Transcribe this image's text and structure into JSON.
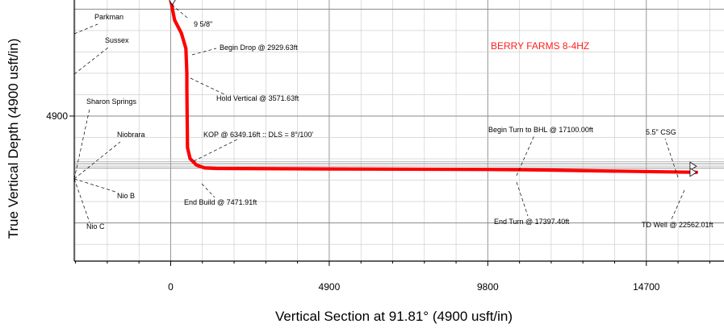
{
  "chart_data": {
    "type": "line",
    "title": "BERRY FARMS 8-4HZ",
    "xlabel": "Vertical Section at 91.81° (4900 usft/in)",
    "ylabel": "True Vertical Depth (4900 usft/in)",
    "x_ticks": [
      {
        "value": 0,
        "label": "0"
      },
      {
        "value": 4900,
        "label": "4900"
      },
      {
        "value": 9800,
        "label": "9800"
      },
      {
        "value": 14700,
        "label": "14700"
      }
    ],
    "y_ticks": [
      {
        "value": 4900,
        "label": "4900"
      }
    ],
    "xlim": [
      -2980,
      17100
    ],
    "ylim": [
      11550,
      -420
    ],
    "y_inverted": true,
    "grid": true,
    "series": [
      {
        "name": "BERRY FARMS 8-4HZ",
        "color": "#ff0000",
        "x": [
          0,
          120,
          330,
          470,
          500,
          500,
          520,
          600,
          800,
          1050,
          1400,
          4900,
          9800,
          11000,
          13000,
          16250
        ],
        "y": [
          -420,
          500,
          1100,
          1800,
          2929.63,
          3571.63,
          6349.16,
          6850,
          7150,
          7280,
          7300,
          7325,
          7350,
          7360,
          7410,
          7480
        ]
      }
    ],
    "formations": [
      {
        "name": "Parkman",
        "depth": 330
      },
      {
        "name": "Sussex",
        "depth": 1500
      },
      {
        "name": "Sharon Springs",
        "depth": 3100
      },
      {
        "name": "Niobrara",
        "depth": 5350
      },
      {
        "name": "Nio B",
        "depth": 7700
      },
      {
        "name": "Nio C",
        "depth": 8700
      }
    ],
    "annotations": [
      {
        "text": "9 5/8\"",
        "x": 0,
        "y": -420
      },
      {
        "text": "Begin Drop @ 2929.63ft",
        "x": 500,
        "y": 2929.63
      },
      {
        "text": "Hold Vertical @ 3571.63ft",
        "x": 500,
        "y": 3571.63
      },
      {
        "text": "KOP @ 6349.16ft :: DLS = 8°/100'",
        "x": 520,
        "y": 6349.16
      },
      {
        "text": "End Build @ 7471.91ft",
        "x": 1400,
        "y": 7300
      },
      {
        "text": "Begin Turn to BHL @ 17100.00ft",
        "x": 10900,
        "y": 7360
      },
      {
        "text": "End Turn @ 17397.40ft",
        "x": 10900,
        "y": 7360
      },
      {
        "text": "5.5\" CSG",
        "x": 16250,
        "y": 7200
      },
      {
        "text": "TD Well @ 22562.01ft",
        "x": 16250,
        "y": 7480
      }
    ]
  }
}
